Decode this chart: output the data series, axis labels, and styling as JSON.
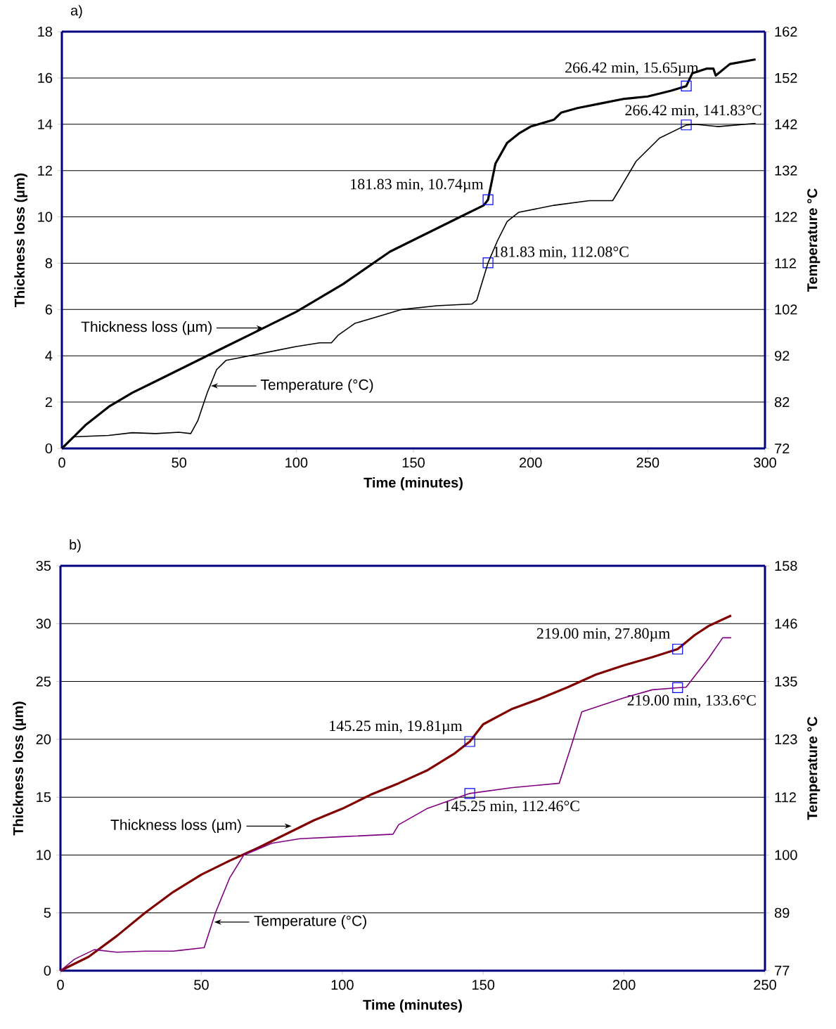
{
  "chart_data": [
    {
      "type": "line",
      "title": "a)",
      "xlabel": "Time (minutes)",
      "ylabel": "Thickness loss (µm)",
      "y2label": "Temperature °C",
      "xlim": [
        0,
        300
      ],
      "xticks": [
        0,
        50,
        100,
        150,
        200,
        250,
        300
      ],
      "ylim": [
        0,
        18
      ],
      "yticks": [
        0,
        2,
        4,
        6,
        8,
        10,
        12,
        14,
        16,
        18
      ],
      "y2lim": [
        72,
        162
      ],
      "y2ticks": [
        72,
        82,
        92,
        102,
        112,
        122,
        132,
        142,
        152,
        162
      ],
      "grid": "y",
      "series": [
        {
          "name": "Thickness loss  (µm)",
          "color": "#000000",
          "x": [
            0,
            5,
            10,
            20,
            30,
            40,
            50,
            60,
            70,
            80,
            90,
            100,
            110,
            120,
            130,
            140,
            150,
            160,
            170,
            180,
            181.83,
            185,
            190,
            195,
            200,
            210,
            213,
            220,
            230,
            240,
            250,
            260,
            266.42,
            269,
            275,
            278,
            279,
            285,
            296
          ],
          "values": [
            0,
            0.5,
            1.0,
            1.8,
            2.4,
            2.9,
            3.4,
            3.9,
            4.4,
            4.9,
            5.4,
            5.9,
            6.5,
            7.1,
            7.8,
            8.5,
            9.0,
            9.5,
            10.0,
            10.5,
            10.74,
            12.3,
            13.2,
            13.6,
            13.9,
            14.2,
            14.5,
            14.7,
            14.9,
            15.1,
            15.2,
            15.45,
            15.65,
            16.2,
            16.4,
            16.4,
            16.1,
            16.6,
            16.8
          ]
        },
        {
          "name": "Temperature (°C)",
          "color": "#000000",
          "axis": "y2",
          "x": [
            0,
            5,
            20,
            30,
            40,
            50,
            55,
            58,
            62,
            66,
            70,
            75,
            90,
            100,
            110,
            115,
            118,
            125,
            135,
            145,
            160,
            175,
            177,
            181.83,
            186,
            190,
            195,
            210,
            225,
            235,
            238,
            245,
            255,
            266.42,
            270,
            280,
            296
          ],
          "values": [
            72,
            74.5,
            74.8,
            75.4,
            75.2,
            75.5,
            75.2,
            78,
            84,
            89,
            91,
            91.5,
            93,
            94,
            94.8,
            94.8,
            96.5,
            99,
            100.5,
            102,
            102.8,
            103.2,
            104,
            112.08,
            117,
            121,
            123,
            124.5,
            125.5,
            125.5,
            128,
            134,
            139,
            141.83,
            142,
            141.5,
            142.2
          ]
        }
      ],
      "annotations": [
        {
          "text": "266.42 min, 15.65µm",
          "x": 266.42,
          "y": 15.65
        },
        {
          "text": "266.42 min, 141.83°C",
          "x": 266.42,
          "y": 13.97
        },
        {
          "text": "181.83 min, 10.74µm",
          "x": 181.83,
          "y": 10.74
        },
        {
          "text": "181.83 min, 112.08°C",
          "x": 181.83,
          "y": 8.02
        }
      ]
    },
    {
      "type": "line",
      "title": "b)",
      "xlabel": "Time (minutes)",
      "ylabel": "Thickness loss (µm)",
      "y2label": "Temperature °C",
      "xlim": [
        0,
        250
      ],
      "xticks": [
        0,
        50,
        100,
        150,
        200,
        250
      ],
      "ylim": [
        0,
        35
      ],
      "yticks": [
        0,
        5,
        10,
        15,
        20,
        25,
        30,
        35
      ],
      "y2lim": [
        77,
        158
      ],
      "y2ticks": [
        77,
        {
          "value": 88.57,
          "label": "89"
        },
        {
          "value": 100.14,
          "label": "100"
        },
        {
          "value": 111.71,
          "label": "112"
        },
        {
          "value": 123.29,
          "label": "123"
        },
        {
          "value": 134.86,
          "label": "135"
        },
        {
          "value": 146.43,
          "label": "146"
        },
        158
      ],
      "grid": "y",
      "series": [
        {
          "name": "Thickness loss  (µm)",
          "color": "#800000",
          "x": [
            0,
            10,
            20,
            30,
            40,
            50,
            60,
            70,
            80,
            90,
            100,
            110,
            120,
            130,
            140,
            145.25,
            150,
            160,
            170,
            180,
            190,
            200,
            210,
            219,
            225,
            230,
            238
          ],
          "values": [
            0,
            1.2,
            3.0,
            5.0,
            6.8,
            8.3,
            9.5,
            10.6,
            11.8,
            13.0,
            14.0,
            15.2,
            16.2,
            17.3,
            18.8,
            19.81,
            21.3,
            22.6,
            23.5,
            24.5,
            25.6,
            26.4,
            27.1,
            27.8,
            29.0,
            29.8,
            30.7
          ]
        },
        {
          "name": "Temperature (°C)",
          "color": "#800080",
          "axis": "y2",
          "x": [
            0,
            5,
            12,
            20,
            30,
            40,
            51,
            55,
            60,
            65,
            75,
            85,
            100,
            118,
            120,
            130,
            145.25,
            160,
            177,
            182,
            185,
            200,
            210,
            219,
            222,
            230,
            235,
            238
          ],
          "values": [
            77,
            79.3,
            81.2,
            80.7,
            80.9,
            80.9,
            81.6,
            88.6,
            95.5,
            100.1,
            102.5,
            103.4,
            103.8,
            104.3,
            106.2,
            109.4,
            112.46,
            113.6,
            114.5,
            123.3,
            128.8,
            131.6,
            133.2,
            133.6,
            133.7,
            139.5,
            143.6,
            143.6
          ]
        }
      ],
      "annotations": [
        {
          "text": "219.00 min, 27.80µm",
          "x": 219,
          "y": 27.8
        },
        {
          "text": "219.00 min, 133.6°C",
          "x": 219,
          "y": 24.46
        },
        {
          "text": "145.25 min, 19.81µm",
          "x": 145.25,
          "y": 19.81
        },
        {
          "text": "145.25 min, 112.46°C",
          "x": 145.25,
          "y": 15.32
        }
      ]
    }
  ]
}
